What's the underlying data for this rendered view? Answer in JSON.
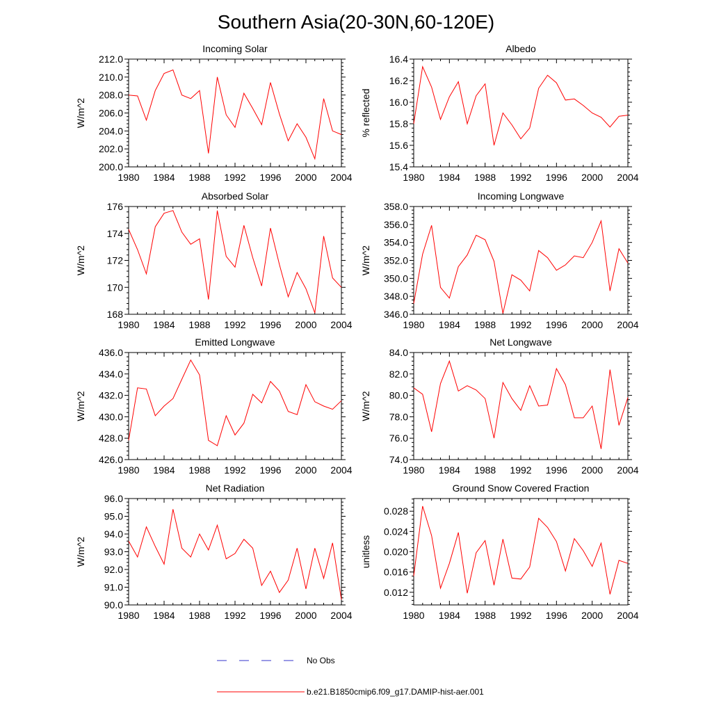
{
  "figure": {
    "title": "Southern Asia(20-30N,60-120E)"
  },
  "legend": [
    {
      "label": "No Obs",
      "color": "#3333cc",
      "style": "dashed"
    },
    {
      "label": "b.e21.B1850cmip6.f09_g17.DAMIP-hist-aer.001",
      "color": "#ff0000",
      "style": "solid"
    }
  ],
  "chart_data": [
    {
      "type": "line",
      "title": "Incoming Solar",
      "xlabel": "",
      "ylabel": "W/m^2",
      "xlim": [
        1980,
        2004
      ],
      "ylim": [
        200,
        212
      ],
      "xticks": [
        1980,
        1984,
        1988,
        1992,
        1996,
        2000,
        2004
      ],
      "xtick_labels": [
        "1980",
        "1984",
        "1988",
        "1992",
        "1996",
        "2000",
        "2004"
      ],
      "yticks": [
        200,
        202,
        204,
        206,
        208,
        210,
        212
      ],
      "ytick_labels": [
        "200.0",
        "202.0",
        "204.0",
        "206.0",
        "208.0",
        "210.0",
        "212.0"
      ],
      "x": [
        1980,
        1981,
        1982,
        1983,
        1984,
        1985,
        1986,
        1987,
        1988,
        1989,
        1990,
        1991,
        1992,
        1993,
        1994,
        1995,
        1996,
        1997,
        1998,
        1999,
        2000,
        2001,
        2002,
        2003,
        2004
      ],
      "series": [
        {
          "color": "#ff0000",
          "values": [
            208.0,
            207.9,
            205.2,
            208.5,
            210.4,
            210.8,
            208.0,
            207.6,
            208.5,
            201.5,
            210.0,
            205.8,
            204.4,
            208.2,
            206.5,
            204.7,
            209.4,
            205.9,
            202.9,
            204.8,
            203.3,
            200.9,
            207.6,
            204.0,
            203.6
          ]
        }
      ]
    },
    {
      "type": "line",
      "title": "Albedo",
      "xlabel": "",
      "ylabel": "% reflected",
      "xlim": [
        1980,
        2004
      ],
      "ylim": [
        15.4,
        16.4
      ],
      "xticks": [
        1980,
        1984,
        1988,
        1992,
        1996,
        2000,
        2004
      ],
      "xtick_labels": [
        "1980",
        "1984",
        "1988",
        "1992",
        "1996",
        "2000",
        "2004"
      ],
      "yticks": [
        15.4,
        15.6,
        15.8,
        16.0,
        16.2,
        16.4
      ],
      "ytick_labels": [
        "15.4",
        "15.6",
        "15.8",
        "16.0",
        "16.2",
        "16.4"
      ],
      "x": [
        1980,
        1981,
        1982,
        1983,
        1984,
        1985,
        1986,
        1987,
        1988,
        1989,
        1990,
        1991,
        1992,
        1993,
        1994,
        1995,
        1996,
        1997,
        1998,
        1999,
        2000,
        2001,
        2002,
        2003,
        2004
      ],
      "series": [
        {
          "color": "#ff0000",
          "values": [
            15.8,
            16.33,
            16.14,
            15.84,
            16.05,
            16.19,
            15.8,
            16.06,
            16.17,
            15.6,
            15.9,
            15.79,
            15.66,
            15.76,
            16.13,
            16.25,
            16.18,
            16.02,
            16.03,
            15.97,
            15.9,
            15.86,
            15.77,
            15.87,
            15.88
          ]
        }
      ]
    },
    {
      "type": "line",
      "title": "Absorbed Solar",
      "xlabel": "",
      "ylabel": "W/m^2",
      "xlim": [
        1980,
        2004
      ],
      "ylim": [
        168,
        176
      ],
      "xticks": [
        1980,
        1984,
        1988,
        1992,
        1996,
        2000,
        2004
      ],
      "xtick_labels": [
        "1980",
        "1984",
        "1988",
        "1992",
        "1996",
        "2000",
        "2004"
      ],
      "yticks": [
        168,
        170,
        172,
        174,
        176
      ],
      "ytick_labels": [
        "168",
        "170",
        "172",
        "174",
        "176"
      ],
      "x": [
        1980,
        1981,
        1982,
        1983,
        1984,
        1985,
        1986,
        1987,
        1988,
        1989,
        1990,
        1991,
        1992,
        1993,
        1994,
        1995,
        1996,
        1997,
        1998,
        1999,
        2000,
        2001,
        2002,
        2003,
        2004
      ],
      "series": [
        {
          "color": "#ff0000",
          "values": [
            174.3,
            172.8,
            171.0,
            174.5,
            175.5,
            175.7,
            174.1,
            173.2,
            173.6,
            169.1,
            175.7,
            172.3,
            171.5,
            174.6,
            172.2,
            170.1,
            174.4,
            171.7,
            169.3,
            171.1,
            169.9,
            168.1,
            173.8,
            170.7,
            170.0
          ]
        }
      ]
    },
    {
      "type": "line",
      "title": "Incoming Longwave",
      "xlabel": "",
      "ylabel": "W/m^2",
      "xlim": [
        1980,
        2004
      ],
      "ylim": [
        346,
        358
      ],
      "xticks": [
        1980,
        1984,
        1988,
        1992,
        1996,
        2000,
        2004
      ],
      "xtick_labels": [
        "1980",
        "1984",
        "1988",
        "1992",
        "1996",
        "2000",
        "2004"
      ],
      "yticks": [
        346,
        348,
        350,
        352,
        354,
        356,
        358
      ],
      "ytick_labels": [
        "346.0",
        "348.0",
        "350.0",
        "352.0",
        "354.0",
        "356.0",
        "358.0"
      ],
      "x": [
        1980,
        1981,
        1982,
        1983,
        1984,
        1985,
        1986,
        1987,
        1988,
        1989,
        1990,
        1991,
        1992,
        1993,
        1994,
        1995,
        1996,
        1997,
        1998,
        1999,
        2000,
        2001,
        2002,
        2003,
        2004
      ],
      "series": [
        {
          "color": "#ff0000",
          "values": [
            347.2,
            352.7,
            355.9,
            349.0,
            347.8,
            351.3,
            352.6,
            354.8,
            354.3,
            351.9,
            346.1,
            350.4,
            349.8,
            348.6,
            353.1,
            352.3,
            350.9,
            351.5,
            352.5,
            352.3,
            354.0,
            356.4,
            348.6,
            353.3,
            351.7
          ]
        }
      ]
    },
    {
      "type": "line",
      "title": "Emitted Longwave",
      "xlabel": "",
      "ylabel": "W/m^2",
      "xlim": [
        1980,
        2004
      ],
      "ylim": [
        426,
        436
      ],
      "xticks": [
        1980,
        1984,
        1988,
        1992,
        1996,
        2000,
        2004
      ],
      "xtick_labels": [
        "1980",
        "1984",
        "1988",
        "1992",
        "1996",
        "2000",
        "2004"
      ],
      "yticks": [
        426,
        428,
        430,
        432,
        434,
        436
      ],
      "ytick_labels": [
        "426.0",
        "428.0",
        "430.0",
        "432.0",
        "434.0",
        "436.0"
      ],
      "x": [
        1980,
        1981,
        1982,
        1983,
        1984,
        1985,
        1986,
        1987,
        1988,
        1989,
        1990,
        1991,
        1992,
        1993,
        1994,
        1995,
        1996,
        1997,
        1998,
        1999,
        2000,
        2001,
        2002,
        2003,
        2004
      ],
      "series": [
        {
          "color": "#ff0000",
          "values": [
            427.8,
            432.7,
            432.6,
            430.1,
            431.0,
            431.7,
            433.5,
            435.3,
            433.9,
            427.8,
            427.3,
            430.1,
            428.3,
            429.4,
            432.1,
            431.3,
            433.3,
            432.4,
            430.5,
            430.2,
            433.0,
            431.4,
            431.0,
            430.7,
            431.5
          ]
        }
      ]
    },
    {
      "type": "line",
      "title": "Net Longwave",
      "xlabel": "",
      "ylabel": "W/m^2",
      "xlim": [
        1980,
        2004
      ],
      "ylim": [
        74,
        84
      ],
      "xticks": [
        1980,
        1984,
        1988,
        1992,
        1996,
        2000,
        2004
      ],
      "xtick_labels": [
        "1980",
        "1984",
        "1988",
        "1992",
        "1996",
        "2000",
        "2004"
      ],
      "yticks": [
        74,
        76,
        78,
        80,
        82,
        84
      ],
      "ytick_labels": [
        "74.0",
        "76.0",
        "78.0",
        "80.0",
        "82.0",
        "84.0"
      ],
      "x": [
        1980,
        1981,
        1982,
        1983,
        1984,
        1985,
        1986,
        1987,
        1988,
        1989,
        1990,
        1991,
        1992,
        1993,
        1994,
        1995,
        1996,
        1997,
        1998,
        1999,
        2000,
        2001,
        2002,
        2003,
        2004
      ],
      "series": [
        {
          "color": "#ff0000",
          "values": [
            80.7,
            80.1,
            76.6,
            81.1,
            83.2,
            80.4,
            80.9,
            80.5,
            79.7,
            76.0,
            81.2,
            79.7,
            78.6,
            80.9,
            79.0,
            79.1,
            82.5,
            81.0,
            77.9,
            77.9,
            79.0,
            75.0,
            82.4,
            77.2,
            79.8
          ]
        }
      ]
    },
    {
      "type": "line",
      "title": "Net Radiation",
      "xlabel": "",
      "ylabel": "W/m^2",
      "xlim": [
        1980,
        2004
      ],
      "ylim": [
        90,
        96
      ],
      "xticks": [
        1980,
        1984,
        1988,
        1992,
        1996,
        2000,
        2004
      ],
      "xtick_labels": [
        "1980",
        "1984",
        "1988",
        "1992",
        "1996",
        "2000",
        "2004"
      ],
      "yticks": [
        90,
        91,
        92,
        93,
        94,
        95,
        96
      ],
      "ytick_labels": [
        "90.0",
        "91.0",
        "92.0",
        "93.0",
        "94.0",
        "95.0",
        "96.0"
      ],
      "x": [
        1980,
        1981,
        1982,
        1983,
        1984,
        1985,
        1986,
        1987,
        1988,
        1989,
        1990,
        1991,
        1992,
        1993,
        1994,
        1995,
        1996,
        1997,
        1998,
        1999,
        2000,
        2001,
        2002,
        2003,
        2004
      ],
      "series": [
        {
          "color": "#ff0000",
          "values": [
            93.6,
            92.7,
            94.4,
            93.3,
            92.3,
            95.4,
            93.2,
            92.7,
            94.0,
            93.1,
            94.5,
            92.6,
            92.9,
            93.7,
            93.2,
            91.1,
            91.9,
            90.7,
            91.4,
            93.2,
            90.9,
            93.2,
            91.5,
            93.5,
            90.3
          ]
        }
      ]
    },
    {
      "type": "line",
      "title": "Ground Snow Covered Fraction",
      "xlabel": "",
      "ylabel": "unitless",
      "xlim": [
        1980,
        2004
      ],
      "ylim": [
        0.0095,
        0.0305
      ],
      "xticks": [
        1980,
        1984,
        1988,
        1992,
        1996,
        2000,
        2004
      ],
      "xtick_labels": [
        "1980",
        "1984",
        "1988",
        "1992",
        "1996",
        "2000",
        "2004"
      ],
      "yticks": [
        0.012,
        0.016,
        0.02,
        0.024,
        0.028
      ],
      "ytick_labels": [
        "0.012",
        "0.016",
        "0.020",
        "0.024",
        "0.028"
      ],
      "x": [
        1980,
        1981,
        1982,
        1983,
        1984,
        1985,
        1986,
        1987,
        1988,
        1989,
        1990,
        1991,
        1992,
        1993,
        1994,
        1995,
        1996,
        1997,
        1998,
        1999,
        2000,
        2001,
        2002,
        2003,
        2004
      ],
      "series": [
        {
          "color": "#ff0000",
          "values": [
            0.0152,
            0.029,
            0.0232,
            0.0128,
            0.0177,
            0.0238,
            0.0118,
            0.0198,
            0.0222,
            0.0134,
            0.0225,
            0.0148,
            0.0146,
            0.017,
            0.0266,
            0.0248,
            0.022,
            0.0162,
            0.0226,
            0.0202,
            0.0171,
            0.0217,
            0.0116,
            0.0183,
            0.0177
          ]
        }
      ]
    }
  ]
}
